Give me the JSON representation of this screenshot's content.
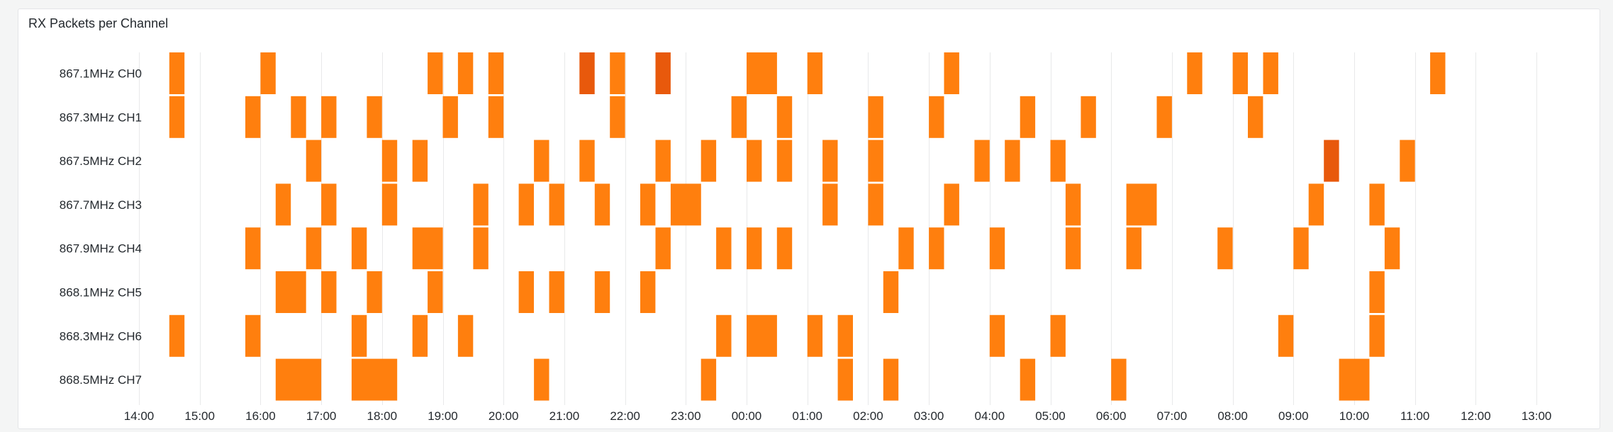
{
  "panel": {
    "title": "RX Packets per Channel"
  },
  "chart_data": {
    "type": "heatmap",
    "title": "RX Packets per Channel",
    "xlabel": "",
    "ylabel": "",
    "x_ticks": [
      "14:00",
      "15:00",
      "16:00",
      "17:00",
      "18:00",
      "19:00",
      "20:00",
      "21:00",
      "22:00",
      "23:00",
      "00:00",
      "01:00",
      "02:00",
      "03:00",
      "04:00",
      "05:00",
      "06:00",
      "07:00",
      "08:00",
      "09:00",
      "10:00",
      "11:00",
      "12:00",
      "13:00"
    ],
    "x_unit": "hours since 14:00",
    "bin_hours": 0.25,
    "xlim": [
      0,
      24
    ],
    "grid": true,
    "legend": "none",
    "colors": {
      "normal": "#ff7f0e",
      "high": "#e8590c",
      "grid": "#e8e9ea"
    },
    "channels": [
      {
        "name": "867.1MHz CH0",
        "bins": [
          [
            0.5,
            1,
            1
          ],
          [
            2,
            1,
            1
          ],
          [
            4.75,
            1,
            1
          ],
          [
            5.25,
            1,
            1
          ],
          [
            5.75,
            1,
            1
          ],
          [
            7.25,
            1,
            2
          ],
          [
            7.75,
            1,
            1
          ],
          [
            8.5,
            1,
            2
          ],
          [
            10,
            2,
            1
          ],
          [
            11,
            1,
            1
          ],
          [
            13.25,
            1,
            1
          ],
          [
            17.25,
            1,
            1
          ],
          [
            18,
            1,
            1
          ],
          [
            18.5,
            1,
            1
          ],
          [
            21.25,
            1,
            1
          ]
        ]
      },
      {
        "name": "867.3MHz CH1",
        "bins": [
          [
            0.5,
            1,
            1
          ],
          [
            1.75,
            1,
            1
          ],
          [
            2.5,
            1,
            1
          ],
          [
            3,
            1,
            1
          ],
          [
            3.75,
            1,
            1
          ],
          [
            5,
            1,
            1
          ],
          [
            5.75,
            1,
            1
          ],
          [
            7.75,
            1,
            1
          ],
          [
            9.75,
            1,
            1
          ],
          [
            10.5,
            1,
            1
          ],
          [
            12,
            1,
            1
          ],
          [
            13,
            1,
            1
          ],
          [
            14.5,
            1,
            1
          ],
          [
            15.5,
            1,
            1
          ],
          [
            16.75,
            1,
            1
          ],
          [
            18.25,
            1,
            1
          ]
        ]
      },
      {
        "name": "867.5MHz CH2",
        "bins": [
          [
            2.75,
            1,
            1
          ],
          [
            4,
            1,
            1
          ],
          [
            4.5,
            1,
            1
          ],
          [
            6.5,
            1,
            1
          ],
          [
            7.25,
            1,
            1
          ],
          [
            8.5,
            1,
            1
          ],
          [
            9.25,
            1,
            1
          ],
          [
            10,
            1,
            1
          ],
          [
            10.5,
            1,
            1
          ],
          [
            11.25,
            1,
            1
          ],
          [
            12,
            1,
            1
          ],
          [
            13.75,
            1,
            1
          ],
          [
            14.25,
            1,
            1
          ],
          [
            15,
            1,
            1
          ],
          [
            19.5,
            1,
            2
          ],
          [
            20.75,
            1,
            1
          ]
        ]
      },
      {
        "name": "867.7MHz CH3",
        "bins": [
          [
            2.25,
            1,
            1
          ],
          [
            3,
            1,
            1
          ],
          [
            4,
            1,
            1
          ],
          [
            5.5,
            1,
            1
          ],
          [
            6.25,
            1,
            1
          ],
          [
            6.75,
            1,
            1
          ],
          [
            7.5,
            1,
            1
          ],
          [
            8.25,
            1,
            1
          ],
          [
            8.75,
            2,
            1
          ],
          [
            11.25,
            1,
            1
          ],
          [
            12,
            1,
            1
          ],
          [
            13.25,
            1,
            1
          ],
          [
            15.25,
            1,
            1
          ],
          [
            16.25,
            2,
            1
          ],
          [
            19.25,
            1,
            1
          ],
          [
            20.25,
            1,
            1
          ]
        ]
      },
      {
        "name": "867.9MHz CH4",
        "bins": [
          [
            1.75,
            1,
            1
          ],
          [
            2.75,
            1,
            1
          ],
          [
            3.5,
            1,
            1
          ],
          [
            4.5,
            2,
            1
          ],
          [
            5.5,
            1,
            1
          ],
          [
            8.5,
            1,
            1
          ],
          [
            9.5,
            1,
            1
          ],
          [
            10,
            1,
            1
          ],
          [
            10.5,
            1,
            1
          ],
          [
            12.5,
            1,
            1
          ],
          [
            13,
            1,
            1
          ],
          [
            14,
            1,
            1
          ],
          [
            15.25,
            1,
            1
          ],
          [
            16.25,
            1,
            1
          ],
          [
            17.75,
            1,
            1
          ],
          [
            19,
            1,
            1
          ],
          [
            20.5,
            1,
            1
          ]
        ]
      },
      {
        "name": "868.1MHz CH5",
        "bins": [
          [
            2.25,
            2,
            1
          ],
          [
            3,
            1,
            1
          ],
          [
            3.75,
            1,
            1
          ],
          [
            4.75,
            1,
            1
          ],
          [
            6.25,
            1,
            1
          ],
          [
            6.75,
            1,
            1
          ],
          [
            7.5,
            1,
            1
          ],
          [
            8.25,
            1,
            1
          ],
          [
            12.25,
            1,
            1
          ],
          [
            20.25,
            1,
            1
          ]
        ]
      },
      {
        "name": "868.3MHz CH6",
        "bins": [
          [
            0.5,
            1,
            1
          ],
          [
            1.75,
            1,
            1
          ],
          [
            3.5,
            1,
            1
          ],
          [
            4.5,
            1,
            1
          ],
          [
            5.25,
            1,
            1
          ],
          [
            9.5,
            1,
            1
          ],
          [
            10,
            2,
            1
          ],
          [
            11,
            1,
            1
          ],
          [
            11.5,
            1,
            1
          ],
          [
            14,
            1,
            1
          ],
          [
            15,
            1,
            1
          ],
          [
            18.75,
            1,
            1
          ],
          [
            20.25,
            1,
            1
          ]
        ]
      },
      {
        "name": "868.5MHz CH7",
        "bins": [
          [
            2.25,
            3,
            1
          ],
          [
            3.5,
            3,
            1
          ],
          [
            6.5,
            1,
            1
          ],
          [
            9.25,
            1,
            1
          ],
          [
            11.5,
            1,
            1
          ],
          [
            12.25,
            1,
            1
          ],
          [
            14.5,
            1,
            1
          ],
          [
            16,
            1,
            1
          ],
          [
            19.75,
            2,
            1
          ]
        ]
      }
    ]
  }
}
